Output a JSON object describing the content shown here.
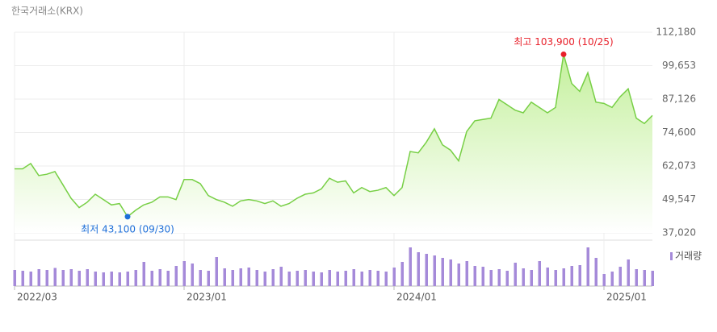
{
  "source": "한국거래소(KRX)",
  "chart_data": [
    {
      "type": "line",
      "categories": [
        "2022/03",
        null,
        null,
        null,
        null,
        null,
        null,
        null,
        null,
        null,
        null,
        null,
        null,
        null,
        null,
        null,
        null,
        null,
        null,
        null,
        null,
        "2023/01",
        null,
        null,
        null,
        null,
        null,
        null,
        null,
        null,
        null,
        null,
        null,
        null,
        null,
        null,
        null,
        null,
        null,
        null,
        null,
        null,
        null,
        null,
        null,
        null,
        null,
        "2024/01",
        null,
        null,
        null,
        null,
        null,
        null,
        null,
        null,
        null,
        null,
        null,
        null,
        null,
        null,
        null,
        null,
        null,
        null,
        null,
        null,
        null,
        null,
        null,
        null,
        null,
        "2025/01",
        null,
        null,
        null,
        null,
        null,
        null
      ],
      "values": [
        61000,
        61000,
        63000,
        58500,
        59000,
        60000,
        55000,
        50000,
        46500,
        48500,
        51500,
        49500,
        47500,
        48000,
        43100,
        45500,
        47500,
        48500,
        50500,
        50500,
        49500,
        57000,
        57000,
        55500,
        51000,
        49500,
        48500,
        47000,
        49000,
        49500,
        49000,
        48000,
        49000,
        47000,
        48000,
        50000,
        51500,
        52000,
        53500,
        57500,
        56000,
        56500,
        52000,
        54000,
        52500,
        53000,
        54000,
        51000,
        54000,
        67500,
        67000,
        71000,
        76000,
        70000,
        68000,
        64000,
        75000,
        79000,
        79500,
        80000,
        87000,
        85000,
        83000,
        82000,
        86000,
        84000,
        82000,
        84000,
        103900,
        93000,
        90000,
        97000,
        86000,
        85500,
        84000,
        88000,
        91000,
        80000,
        78000,
        81000
      ],
      "color": "#77cf45",
      "ylim": [
        37020,
        112180
      ],
      "yticks": [
        {
          "value": 37020,
          "label": "37,020"
        },
        {
          "value": 49547,
          "label": "49,547"
        },
        {
          "value": 62073,
          "label": "62,073"
        },
        {
          "value": 74600,
          "label": "74,600"
        },
        {
          "value": 87126,
          "label": "87,126"
        },
        {
          "value": 99653,
          "label": "99,653"
        },
        {
          "value": 112180,
          "label": "112,180"
        }
      ],
      "grid": true,
      "annotations": [
        {
          "text": "최고 103,900 (10/25)",
          "color": "#e8202a",
          "at": "max"
        },
        {
          "text": "최저 43,100 (09/30)",
          "color": "#1e6fd9",
          "at": "min"
        }
      ]
    },
    {
      "type": "bar",
      "series": [
        {
          "name": "거래량",
          "color": "#a58ad9",
          "values": [
            40,
            38,
            36,
            42,
            40,
            45,
            40,
            42,
            38,
            42,
            36,
            34,
            36,
            34,
            36,
            40,
            60,
            38,
            42,
            38,
            50,
            62,
            56,
            40,
            38,
            72,
            44,
            40,
            44,
            46,
            40,
            36,
            42,
            48,
            36,
            38,
            40,
            36,
            34,
            40,
            36,
            38,
            42,
            36,
            40,
            38,
            36,
            46,
            60,
            96,
            84,
            80,
            76,
            70,
            66,
            56,
            62,
            50,
            48,
            40,
            42,
            38,
            58,
            44,
            40,
            62,
            46,
            40,
            44,
            50,
            52,
            96,
            70,
            30,
            36,
            48,
            66,
            42,
            40,
            38
          ]
        }
      ],
      "ylim": [
        0,
        100
      ]
    }
  ]
}
